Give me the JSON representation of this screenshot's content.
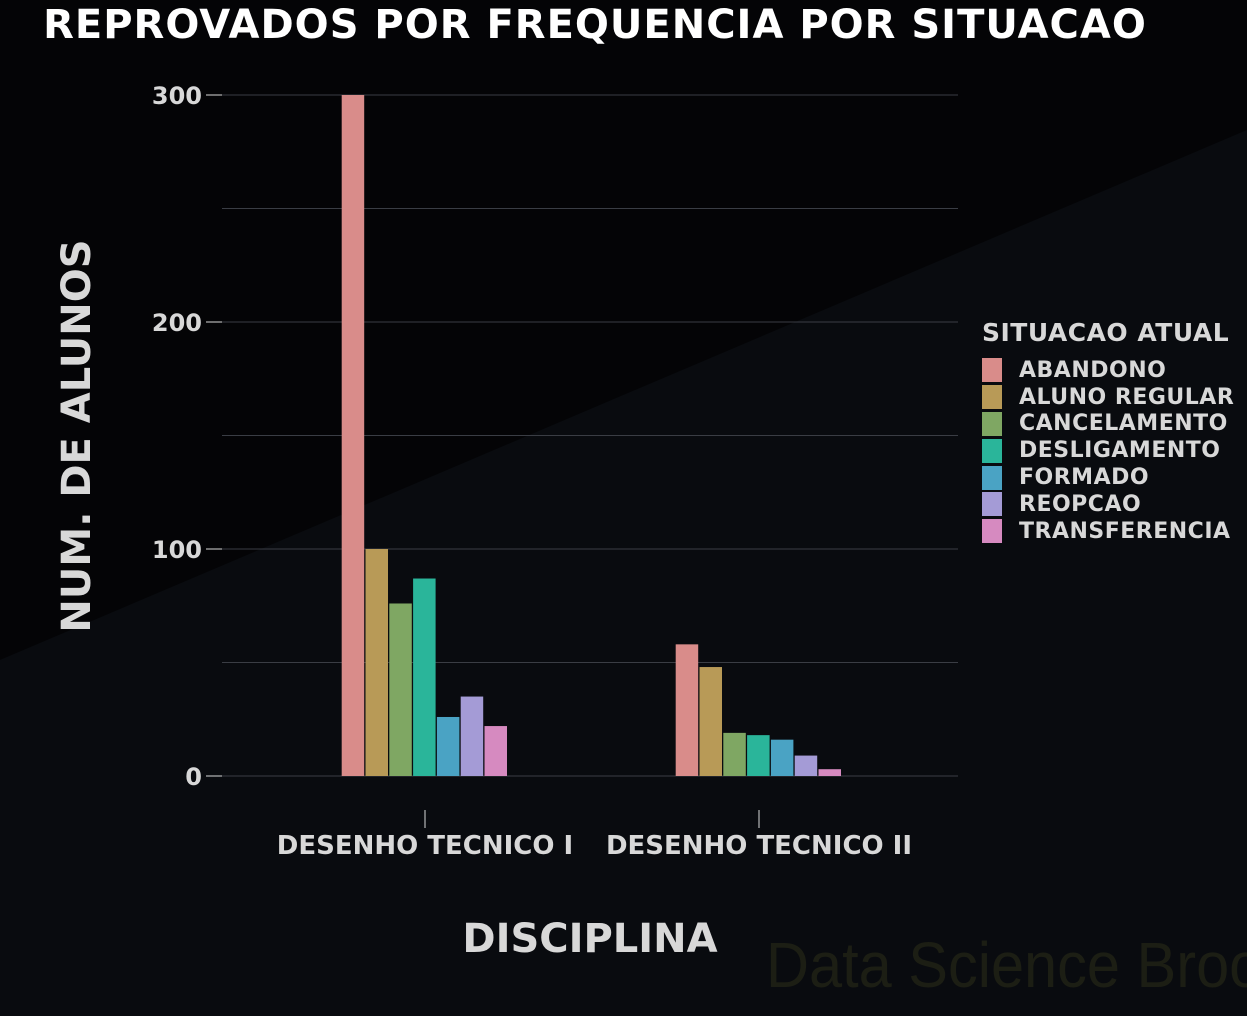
{
  "chart_data": {
    "type": "bar",
    "title": "REPROVADOS POR FREQUENCIA POR SITUACAO",
    "xlabel": "DISCIPLINA",
    "ylabel": "NUM. DE ALUNOS",
    "categories": [
      "DESENHO TECNICO I",
      "DESENHO TECNICO II"
    ],
    "ylim": [
      0,
      300
    ],
    "yticks": [
      0,
      100,
      200,
      300
    ],
    "grid": true,
    "legend_title": "SITUACAO ATUAL",
    "legend_position": "right",
    "series": [
      {
        "name": "ABANDONO",
        "color": "#d98c8a",
        "values": [
          300,
          58
        ]
      },
      {
        "name": "ALUNO REGULAR",
        "color": "#b89a57",
        "values": [
          100,
          48
        ]
      },
      {
        "name": "CANCELAMENTO",
        "color": "#7fa763",
        "values": [
          76,
          19
        ]
      },
      {
        "name": "DESLIGAMENTO",
        "color": "#2ab59a",
        "values": [
          87,
          18
        ]
      },
      {
        "name": "FORMADO",
        "color": "#4aa3c4",
        "values": [
          26,
          16
        ]
      },
      {
        "name": "REOPCAO",
        "color": "#a49bd6",
        "values": [
          35,
          9
        ]
      },
      {
        "name": "TRANSFERENCIA",
        "color": "#d68ac0",
        "values": [
          22,
          3
        ]
      }
    ]
  },
  "watermark": "Data Science Broon"
}
